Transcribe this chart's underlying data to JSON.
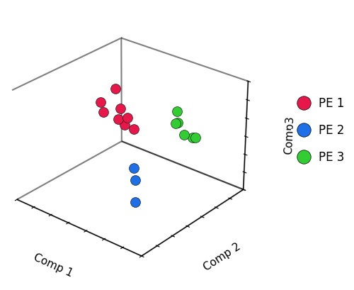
{
  "pe1_points": [
    [
      -2.2,
      1.5,
      1.8
    ],
    [
      -1.5,
      1.0,
      1.2
    ],
    [
      -2.8,
      1.2,
      1.0
    ],
    [
      -2.3,
      0.8,
      0.8
    ],
    [
      -1.8,
      1.8,
      0.2
    ],
    [
      -2.5,
      2.0,
      -0.2
    ],
    [
      -2.0,
      2.5,
      -0.8
    ],
    [
      -2.8,
      2.8,
      -1.0
    ]
  ],
  "pe2_points": [
    [
      1.0,
      -1.0,
      -0.8
    ],
    [
      0.6,
      -0.6,
      -0.5
    ],
    [
      1.0,
      -1.0,
      -2.0
    ]
  ],
  "pe3_points": [
    [
      1.2,
      1.5,
      1.8
    ],
    [
      1.5,
      1.0,
      1.5
    ],
    [
      1.0,
      1.8,
      1.0
    ],
    [
      1.6,
      1.5,
      0.7
    ],
    [
      1.8,
      2.0,
      0.4
    ],
    [
      1.5,
      2.2,
      0.2
    ]
  ],
  "pe1_color": "#E8174A",
  "pe2_color": "#1E6FE8",
  "pe3_color": "#32CD32",
  "marker_size": 100,
  "xlabel": "Comp 1",
  "ylabel": "Comp 2",
  "zlabel": "Comp3",
  "legend_labels": [
    "PE 1",
    "PE 2",
    "PE 3"
  ],
  "legend_colors": [
    "#E8174A",
    "#1E6FE8",
    "#32CD32"
  ],
  "elev": 28,
  "azim": -50,
  "xlim": [
    -4,
    3
  ],
  "ylim": [
    -3,
    4
  ],
  "zlim": [
    -3,
    3
  ]
}
